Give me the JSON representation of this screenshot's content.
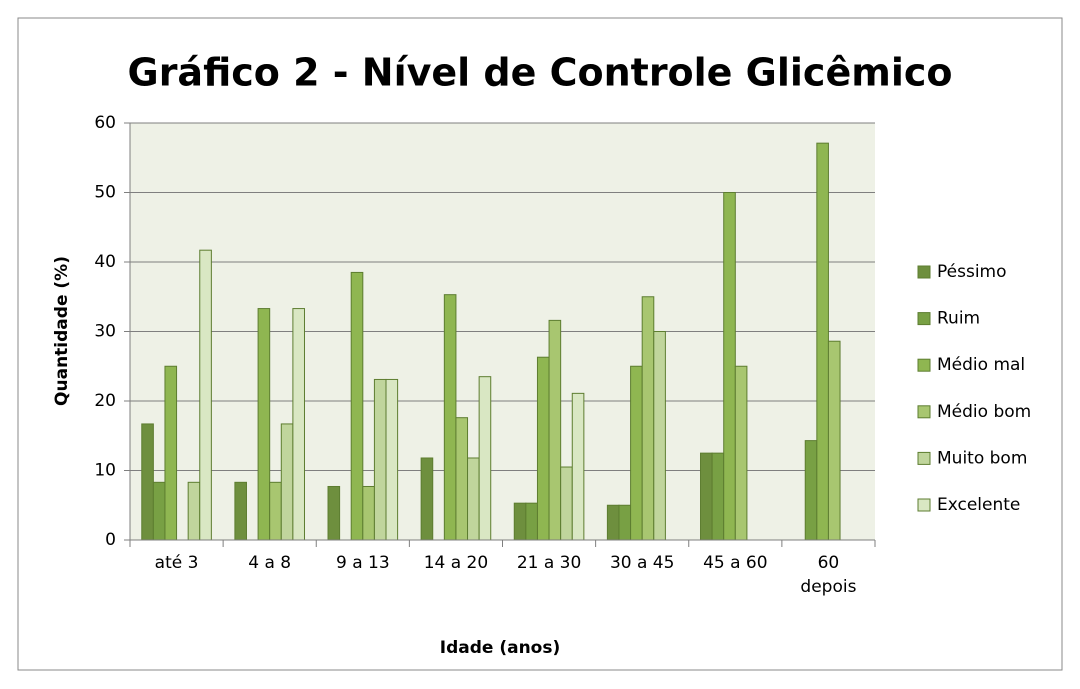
{
  "chart_data": {
    "type": "bar",
    "title": "Gráfico 2 - Nível de Controle Glicêmico",
    "x_label": "Idade (anos)",
    "y_label": "Quantidade (%)",
    "categories": [
      "até 3",
      "4 a 8",
      "9 a 13",
      "14 a 20",
      "21 a 30",
      "30 a 45",
      "45 a  60",
      "60\ndepois"
    ],
    "series": [
      {
        "name": "Péssimo",
        "color": "#6e8f3e",
        "values": [
          16.7,
          8.3,
          7.7,
          11.8,
          5.3,
          5,
          12.5,
          0
        ]
      },
      {
        "name": "Ruim",
        "color": "#78a044",
        "values": [
          8.3,
          0,
          0,
          0,
          5.3,
          5,
          12.5,
          14.3
        ]
      },
      {
        "name": "Médio mal",
        "color": "#8fb651",
        "values": [
          25,
          33.3,
          38.5,
          35.3,
          26.3,
          25,
          50,
          57.1
        ]
      },
      {
        "name": "Médio bom",
        "color": "#a8c670",
        "values": [
          0,
          8.3,
          7.7,
          17.6,
          31.6,
          35,
          25,
          28.6
        ]
      },
      {
        "name": "Muito bom",
        "color": "#c0d59c",
        "values": [
          8.3,
          16.7,
          23.1,
          11.8,
          10.5,
          30,
          0,
          0
        ]
      },
      {
        "name": "Excelente",
        "color": "#d9e7c3",
        "values": [
          41.7,
          33.3,
          23.1,
          23.5,
          21.1,
          0,
          0,
          0
        ]
      }
    ],
    "ylim": [
      0,
      60
    ],
    "yticks": [
      0,
      10,
      20,
      30,
      40,
      50,
      60
    ],
    "grid": true,
    "legend": "right"
  }
}
